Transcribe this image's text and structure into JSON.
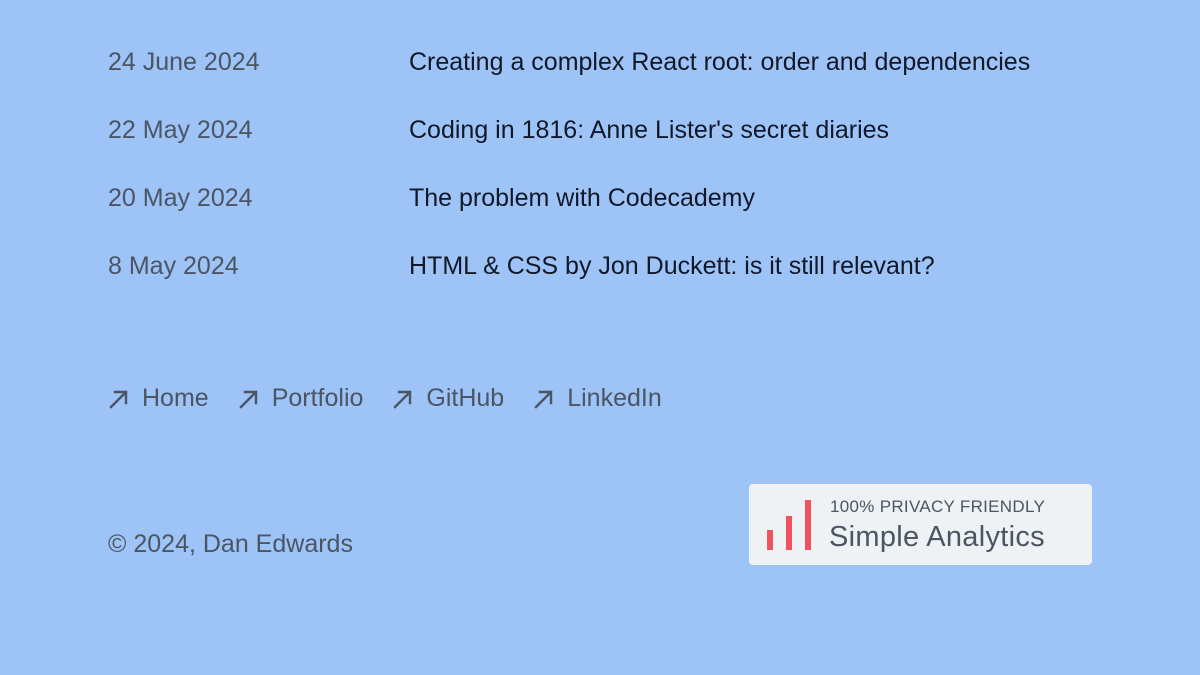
{
  "posts": [
    {
      "date": "24 June 2024",
      "title": "Creating a complex React root: order and dependencies"
    },
    {
      "date": "22 May 2024",
      "title": "Coding in 1816: Anne Lister's secret diaries"
    },
    {
      "date": "20 May 2024",
      "title": "The problem with Codecademy"
    },
    {
      "date": "8 May 2024",
      "title": "HTML & CSS by Jon Duckett: is it still relevant?"
    }
  ],
  "nav": {
    "icon": "arrow-up-right-icon",
    "links": [
      {
        "label": "Home"
      },
      {
        "label": "Portfolio"
      },
      {
        "label": "GitHub"
      },
      {
        "label": "LinkedIn"
      }
    ]
  },
  "footer": {
    "copyright": "© 2024, Dan Edwards"
  },
  "badge": {
    "tagline": "100% PRIVACY FRIENDLY",
    "name": "Simple Analytics",
    "icon": "bar-chart-icon",
    "accent_color": "#f0525e"
  },
  "colors": {
    "background": "#9dc3f7",
    "muted_text": "#4b5563",
    "title_text": "#111827"
  }
}
